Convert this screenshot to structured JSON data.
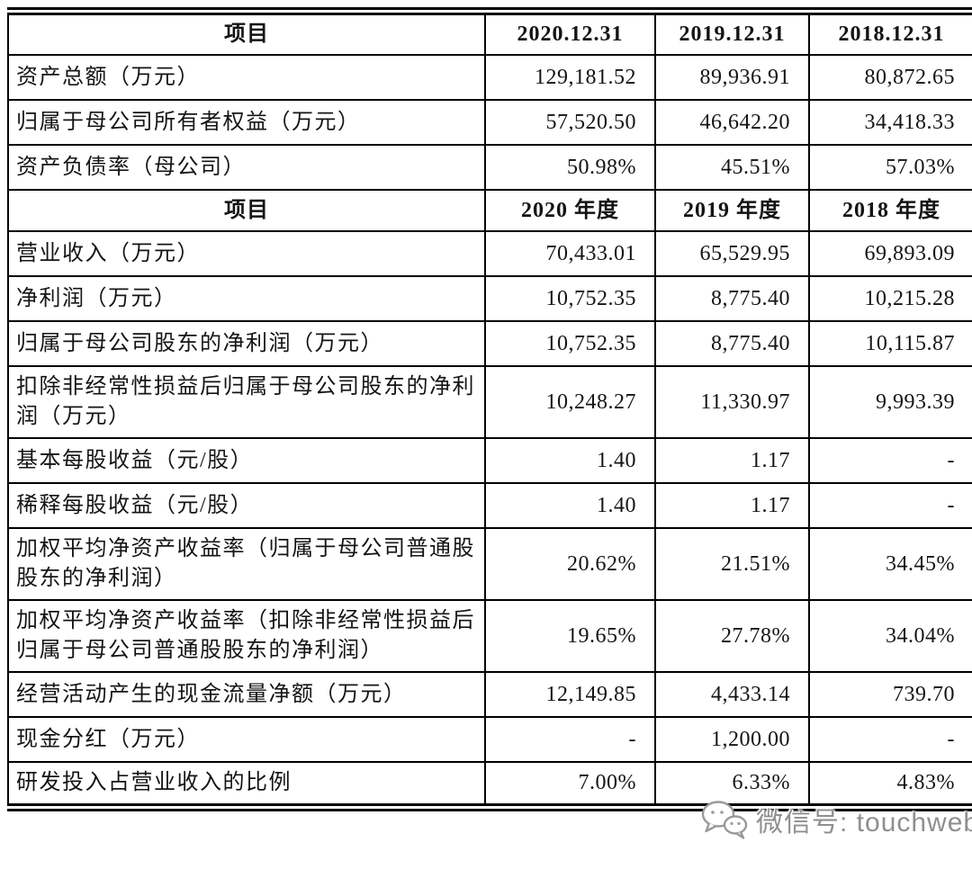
{
  "meta": {
    "text_color": "#141414",
    "border_color": "#000000",
    "background_color": "#ffffff",
    "watermark_color": "#8f8f8f"
  },
  "table": {
    "rows": [
      {
        "type": "header",
        "cells": [
          "项目",
          "2020.12.31",
          "2019.12.31",
          "2018.12.31"
        ]
      },
      {
        "type": "data",
        "cells": [
          "资产总额（万元）",
          "129,181.52",
          "89,936.91",
          "80,872.65"
        ]
      },
      {
        "type": "data",
        "cells": [
          "归属于母公司所有者权益（万元）",
          "57,520.50",
          "46,642.20",
          "34,418.33"
        ]
      },
      {
        "type": "data",
        "cells": [
          "资产负债率（母公司）",
          "50.98%",
          "45.51%",
          "57.03%"
        ]
      },
      {
        "type": "header",
        "cells": [
          "项目",
          "2020 年度",
          "2019 年度",
          "2018 年度"
        ]
      },
      {
        "type": "data",
        "cells": [
          "营业收入（万元）",
          "70,433.01",
          "65,529.95",
          "69,893.09"
        ]
      },
      {
        "type": "data",
        "cells": [
          "净利润（万元）",
          "10,752.35",
          "8,775.40",
          "10,215.28"
        ]
      },
      {
        "type": "data",
        "cells": [
          "归属于母公司股东的净利润（万元）",
          "10,752.35",
          "8,775.40",
          "10,115.87"
        ]
      },
      {
        "type": "data",
        "cells": [
          "扣除非经常性损益后归属于母公司股东的净利润（万元）",
          "10,248.27",
          "11,330.97",
          "9,993.39"
        ]
      },
      {
        "type": "data",
        "cells": [
          "基本每股收益（元/股）",
          "1.40",
          "1.17",
          "-"
        ]
      },
      {
        "type": "data",
        "cells": [
          "稀释每股收益（元/股）",
          "1.40",
          "1.17",
          "-"
        ]
      },
      {
        "type": "data",
        "cells": [
          "加权平均净资产收益率（归属于母公司普通股股东的净利润）",
          "20.62%",
          "21.51%",
          "34.45%"
        ]
      },
      {
        "type": "data",
        "cells": [
          "加权平均净资产收益率（扣除非经常性损益后归属于母公司普通股股东的净利润）",
          "19.65%",
          "27.78%",
          "34.04%"
        ]
      },
      {
        "type": "data",
        "cells": [
          "经营活动产生的现金流量净额（万元）",
          "12,149.85",
          "4,433.14",
          "739.70"
        ]
      },
      {
        "type": "data",
        "cells": [
          "现金分红（万元）",
          "-",
          "1,200.00",
          "-"
        ]
      },
      {
        "type": "data",
        "cells": [
          "研发投入占营业收入的比例",
          "7.00%",
          "6.33%",
          "4.83%"
        ]
      }
    ]
  },
  "watermark": {
    "icon": "wechat-icon",
    "text": "微信号: touchweb"
  }
}
